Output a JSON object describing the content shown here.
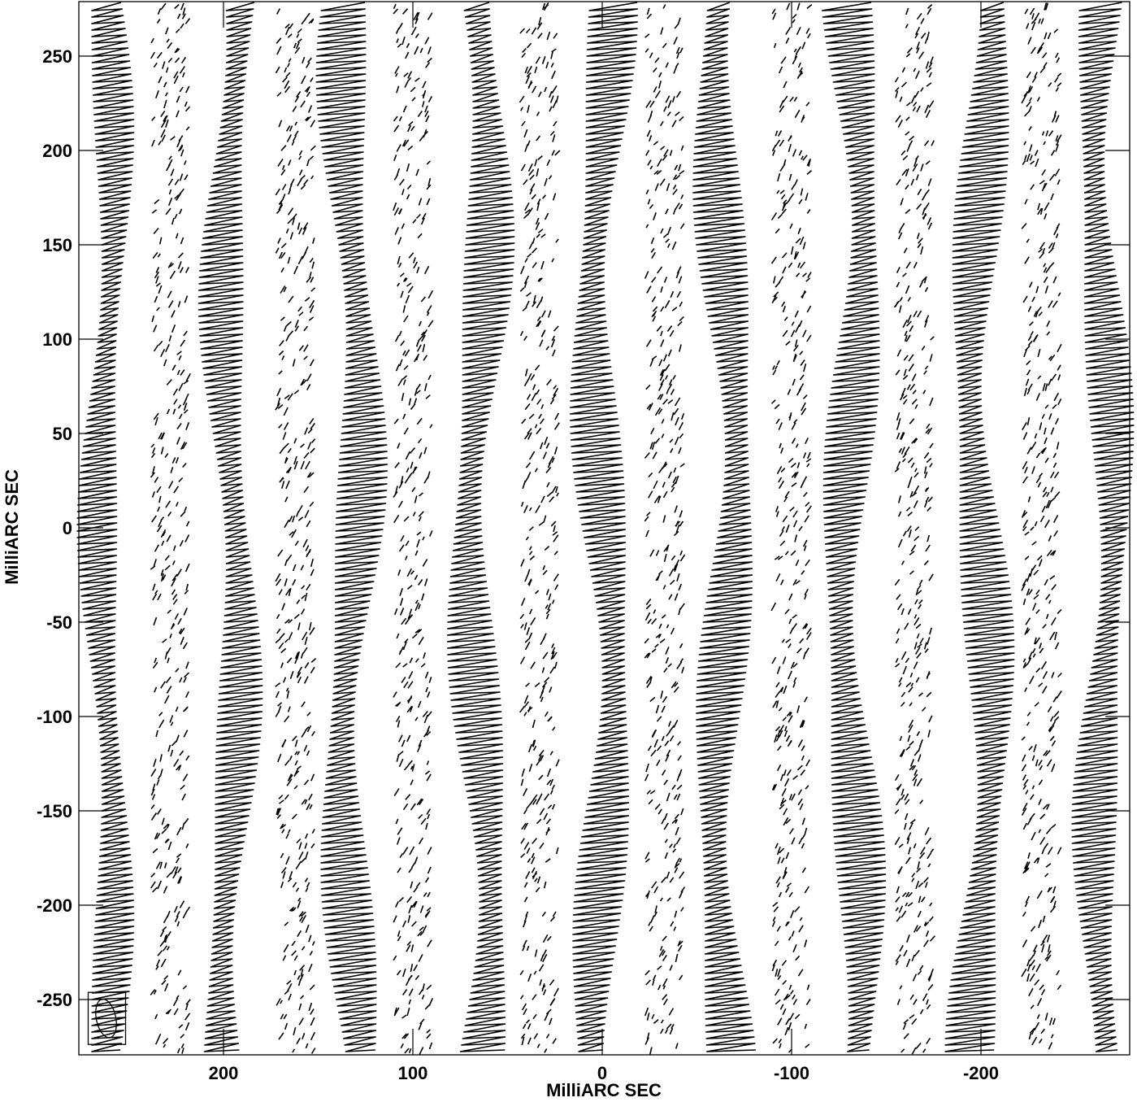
{
  "chart_data": {
    "type": "contour",
    "title": "",
    "xlabel": "MilliARC SEC",
    "ylabel": "MilliARC SEC",
    "xlim": [
      275,
      -280
    ],
    "ylim": [
      -280,
      278
    ],
    "x_inverted": true,
    "xticks": [
      200,
      100,
      0,
      -100,
      -200
    ],
    "xtick_labels": [
      "200",
      "100",
      "0",
      "-100",
      "-200"
    ],
    "yticks": [
      250,
      200,
      150,
      100,
      50,
      0,
      -50,
      -100,
      -150,
      -200,
      -250
    ],
    "ytick_labels": [
      "250",
      "200",
      "150",
      "100",
      "50",
      "0",
      "-50",
      "-100",
      "-150",
      "-200",
      "-250"
    ],
    "grid": false,
    "legend": "none",
    "beam": {
      "x": 262,
      "y": -260,
      "major": 12,
      "minor": 10
    },
    "bands": [
      {
        "x": 262,
        "amp": 8,
        "density": "dense"
      },
      {
        "x": 228,
        "amp": 6,
        "density": "sparse"
      },
      {
        "x": 196,
        "amp": 9,
        "density": "dense"
      },
      {
        "x": 162,
        "amp": 6,
        "density": "sparse"
      },
      {
        "x": 132,
        "amp": 10,
        "density": "dense"
      },
      {
        "x": 100,
        "amp": 6,
        "density": "sparse"
      },
      {
        "x": 65,
        "amp": 10,
        "density": "dense"
      },
      {
        "x": 33,
        "amp": 6,
        "density": "sparse"
      },
      {
        "x": 0,
        "amp": 10,
        "density": "dense"
      },
      {
        "x": -33,
        "amp": 6,
        "density": "sparse"
      },
      {
        "x": -65,
        "amp": 10,
        "density": "dense"
      },
      {
        "x": -100,
        "amp": 6,
        "density": "sparse"
      },
      {
        "x": -132,
        "amp": 10,
        "density": "dense"
      },
      {
        "x": -165,
        "amp": 6,
        "density": "sparse"
      },
      {
        "x": -200,
        "amp": 10,
        "density": "dense"
      },
      {
        "x": -232,
        "amp": 6,
        "density": "sparse"
      },
      {
        "x": -265,
        "amp": 9,
        "density": "dense"
      }
    ]
  }
}
